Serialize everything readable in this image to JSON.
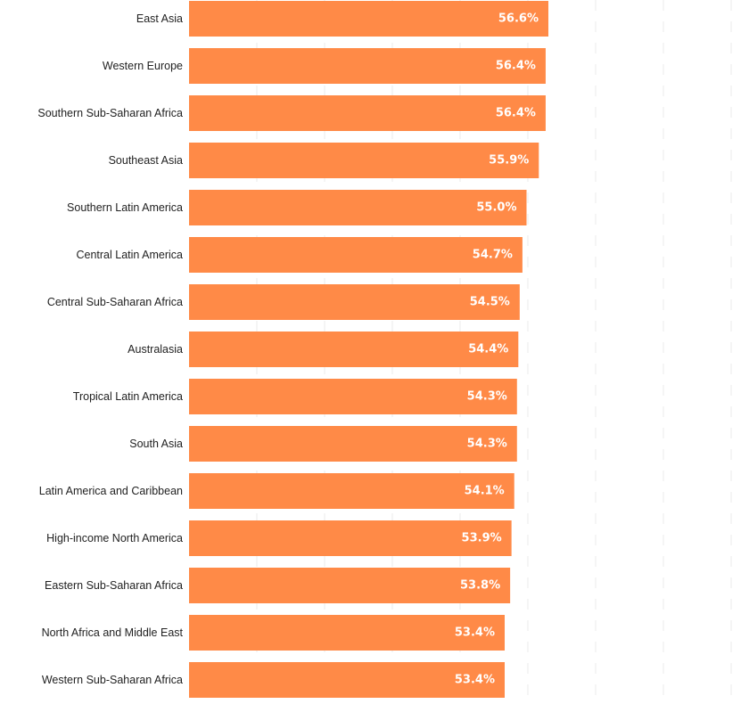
{
  "chart_data": {
    "type": "bar",
    "orientation": "horizontal",
    "categories": [
      "East Asia",
      "Western Europe",
      "Southern Sub-Saharan Africa",
      "Southeast Asia",
      "Southern Latin America",
      "Central Latin America",
      "Central Sub-Saharan Africa",
      "Australasia",
      "Tropical Latin America",
      "South Asia",
      "Latin America and Caribbean",
      "High-income North America",
      "Eastern Sub-Saharan Africa",
      "North Africa and Middle East",
      "Western Sub-Saharan Africa"
    ],
    "values": [
      56.6,
      56.4,
      56.4,
      55.9,
      55.0,
      54.7,
      54.5,
      54.4,
      54.3,
      54.3,
      54.1,
      53.9,
      53.8,
      53.4,
      53.4
    ],
    "value_labels": [
      "56.6%",
      "56.4%",
      "56.4%",
      "55.9%",
      "55.0%",
      "54.7%",
      "54.5%",
      "54.4%",
      "54.3%",
      "54.3%",
      "54.1%",
      "53.9%",
      "53.8%",
      "53.4%",
      "53.4%"
    ],
    "title": "",
    "xlabel": "",
    "ylabel": "",
    "bar_color": "#ff8a47",
    "value_label_color": "#ffffff",
    "grid": true,
    "gridline_color": "#ebebeb"
  }
}
